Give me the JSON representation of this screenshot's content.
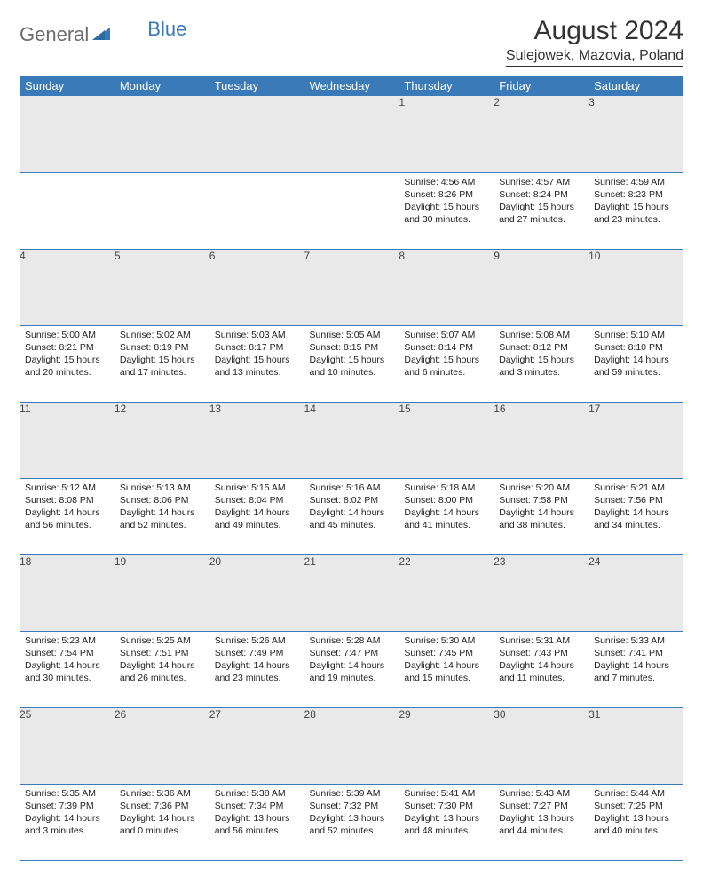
{
  "brand": {
    "part1": "General",
    "part2": "Blue"
  },
  "title": "August 2024",
  "location": "Sulejowek, Mazovia, Poland",
  "colors": {
    "header_bg": "#3a7ab8",
    "header_text": "#ffffff",
    "daynum_bg": "#e9e9e9",
    "border": "#3a7ab8",
    "logo_gray": "#6b6b6b",
    "logo_blue": "#3a7ab8"
  },
  "weekdays": [
    "Sunday",
    "Monday",
    "Tuesday",
    "Wednesday",
    "Thursday",
    "Friday",
    "Saturday"
  ],
  "weeks": [
    [
      null,
      null,
      null,
      null,
      {
        "n": "1",
        "sr": "4:56 AM",
        "ss": "8:26 PM",
        "dl": "15 hours and 30 minutes."
      },
      {
        "n": "2",
        "sr": "4:57 AM",
        "ss": "8:24 PM",
        "dl": "15 hours and 27 minutes."
      },
      {
        "n": "3",
        "sr": "4:59 AM",
        "ss": "8:23 PM",
        "dl": "15 hours and 23 minutes."
      }
    ],
    [
      {
        "n": "4",
        "sr": "5:00 AM",
        "ss": "8:21 PM",
        "dl": "15 hours and 20 minutes."
      },
      {
        "n": "5",
        "sr": "5:02 AM",
        "ss": "8:19 PM",
        "dl": "15 hours and 17 minutes."
      },
      {
        "n": "6",
        "sr": "5:03 AM",
        "ss": "8:17 PM",
        "dl": "15 hours and 13 minutes."
      },
      {
        "n": "7",
        "sr": "5:05 AM",
        "ss": "8:15 PM",
        "dl": "15 hours and 10 minutes."
      },
      {
        "n": "8",
        "sr": "5:07 AM",
        "ss": "8:14 PM",
        "dl": "15 hours and 6 minutes."
      },
      {
        "n": "9",
        "sr": "5:08 AM",
        "ss": "8:12 PM",
        "dl": "15 hours and 3 minutes."
      },
      {
        "n": "10",
        "sr": "5:10 AM",
        "ss": "8:10 PM",
        "dl": "14 hours and 59 minutes."
      }
    ],
    [
      {
        "n": "11",
        "sr": "5:12 AM",
        "ss": "8:08 PM",
        "dl": "14 hours and 56 minutes."
      },
      {
        "n": "12",
        "sr": "5:13 AM",
        "ss": "8:06 PM",
        "dl": "14 hours and 52 minutes."
      },
      {
        "n": "13",
        "sr": "5:15 AM",
        "ss": "8:04 PM",
        "dl": "14 hours and 49 minutes."
      },
      {
        "n": "14",
        "sr": "5:16 AM",
        "ss": "8:02 PM",
        "dl": "14 hours and 45 minutes."
      },
      {
        "n": "15",
        "sr": "5:18 AM",
        "ss": "8:00 PM",
        "dl": "14 hours and 41 minutes."
      },
      {
        "n": "16",
        "sr": "5:20 AM",
        "ss": "7:58 PM",
        "dl": "14 hours and 38 minutes."
      },
      {
        "n": "17",
        "sr": "5:21 AM",
        "ss": "7:56 PM",
        "dl": "14 hours and 34 minutes."
      }
    ],
    [
      {
        "n": "18",
        "sr": "5:23 AM",
        "ss": "7:54 PM",
        "dl": "14 hours and 30 minutes."
      },
      {
        "n": "19",
        "sr": "5:25 AM",
        "ss": "7:51 PM",
        "dl": "14 hours and 26 minutes."
      },
      {
        "n": "20",
        "sr": "5:26 AM",
        "ss": "7:49 PM",
        "dl": "14 hours and 23 minutes."
      },
      {
        "n": "21",
        "sr": "5:28 AM",
        "ss": "7:47 PM",
        "dl": "14 hours and 19 minutes."
      },
      {
        "n": "22",
        "sr": "5:30 AM",
        "ss": "7:45 PM",
        "dl": "14 hours and 15 minutes."
      },
      {
        "n": "23",
        "sr": "5:31 AM",
        "ss": "7:43 PM",
        "dl": "14 hours and 11 minutes."
      },
      {
        "n": "24",
        "sr": "5:33 AM",
        "ss": "7:41 PM",
        "dl": "14 hours and 7 minutes."
      }
    ],
    [
      {
        "n": "25",
        "sr": "5:35 AM",
        "ss": "7:39 PM",
        "dl": "14 hours and 3 minutes."
      },
      {
        "n": "26",
        "sr": "5:36 AM",
        "ss": "7:36 PM",
        "dl": "14 hours and 0 minutes."
      },
      {
        "n": "27",
        "sr": "5:38 AM",
        "ss": "7:34 PM",
        "dl": "13 hours and 56 minutes."
      },
      {
        "n": "28",
        "sr": "5:39 AM",
        "ss": "7:32 PM",
        "dl": "13 hours and 52 minutes."
      },
      {
        "n": "29",
        "sr": "5:41 AM",
        "ss": "7:30 PM",
        "dl": "13 hours and 48 minutes."
      },
      {
        "n": "30",
        "sr": "5:43 AM",
        "ss": "7:27 PM",
        "dl": "13 hours and 44 minutes."
      },
      {
        "n": "31",
        "sr": "5:44 AM",
        "ss": "7:25 PM",
        "dl": "13 hours and 40 minutes."
      }
    ]
  ],
  "labels": {
    "sunrise": "Sunrise:",
    "sunset": "Sunset:",
    "daylight": "Daylight:"
  }
}
